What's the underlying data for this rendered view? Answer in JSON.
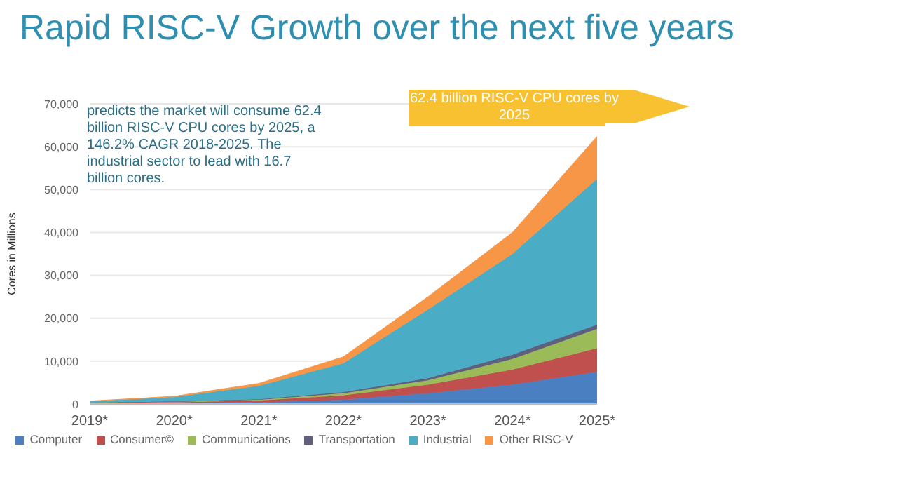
{
  "chart_data": {
    "type": "area",
    "title": "Rapid RISC-V Growth over the next five years",
    "ylabel": "Cores in Millions",
    "stacked": true,
    "grid": "y",
    "legend": "bottom",
    "marker": "none",
    "categories": [
      "2019*",
      "2020*",
      "2021*",
      "2022*",
      "2023*",
      "2024*",
      "2025*"
    ],
    "ylim": [
      0,
      70000
    ],
    "yticks": [
      {
        "value": 0,
        "label": "0"
      },
      {
        "value": 10000,
        "label": "10,000"
      },
      {
        "value": 20000,
        "label": "20,000"
      },
      {
        "value": 30000,
        "label": "30,000"
      },
      {
        "value": 40000,
        "label": "40,000"
      },
      {
        "value": 50000,
        "label": "50,000"
      },
      {
        "value": 60000,
        "label": "60,000"
      },
      {
        "value": 70000,
        "label": "70,000"
      }
    ],
    "series": [
      {
        "name": "Computer",
        "color": "#4a7fc1",
        "values": [
          100,
          200,
          400,
          1000,
          2500,
          4500,
          7500
        ]
      },
      {
        "name": "Consumer©",
        "color": "#c0504d",
        "values": [
          100,
          200,
          400,
          1000,
          2000,
          3500,
          5500
        ]
      },
      {
        "name": "Communications",
        "color": "#9bbb59",
        "values": [
          100,
          100,
          200,
          500,
          1000,
          2500,
          4500
        ]
      },
      {
        "name": "Transportation",
        "color": "#5f5f7f",
        "values": [
          0,
          100,
          100,
          300,
          500,
          1000,
          1000
        ]
      },
      {
        "name": "Industrial",
        "color": "#4bacc6",
        "values": [
          300,
          1000,
          3100,
          6700,
          16000,
          23500,
          34000
        ]
      },
      {
        "name": "Other RISC-V",
        "color": "#f79646",
        "values": [
          100,
          200,
          600,
          1500,
          3000,
          5000,
          9900
        ]
      }
    ],
    "annotations": [
      "predicts the market will consume 62.4 billion RISC-V CPU cores by 2025, a 146.2% CAGR 2018-2025. The industrial sector to lead with 16.7 billion cores.",
      "62.4 billion RISC-V CPU cores by 2025"
    ]
  }
}
